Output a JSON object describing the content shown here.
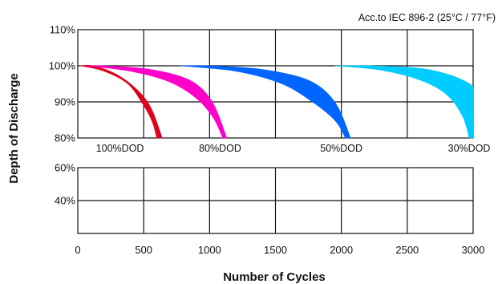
{
  "chart_data": {
    "type": "area",
    "title": "Acc.to IEC 896-2 (25°C / 77°F)",
    "xlabel": "Number of Cycles",
    "ylabel": "Depth of Discharge",
    "xlim": [
      0,
      3000
    ],
    "x_ticks": [
      "0",
      "500",
      "1000",
      "1500",
      "2000",
      "2500",
      "3000"
    ],
    "upper_panel": {
      "ylim": [
        80,
        110
      ],
      "y_ticks": [
        "80%",
        "90%",
        "100%",
        "110%"
      ]
    },
    "lower_panel": {
      "ylim": [
        20,
        60
      ],
      "y_ticks": [
        "40%",
        "60%"
      ]
    },
    "grid": true,
    "series": [
      {
        "name": "100%DOD",
        "color": "#e0001b",
        "lower": [
          [
            20,
            100
          ],
          [
            200,
            98.5
          ],
          [
            380,
            95
          ],
          [
            500,
            89
          ],
          [
            565,
            84.5
          ],
          [
            600,
            80
          ]
        ],
        "upper": [
          [
            20,
            100
          ],
          [
            120,
            100
          ],
          [
            300,
            97.5
          ],
          [
            460,
            93
          ],
          [
            560,
            88
          ],
          [
            640,
            80
          ]
        ]
      },
      {
        "name": "80%DOD",
        "color": "#ff00c8",
        "lower": [
          [
            60,
            100
          ],
          [
            400,
            98.5
          ],
          [
            700,
            95.5
          ],
          [
            900,
            91
          ],
          [
            1030,
            85.5
          ],
          [
            1100,
            80
          ]
        ],
        "upper": [
          [
            60,
            100
          ],
          [
            200,
            100
          ],
          [
            550,
            99
          ],
          [
            850,
            96
          ],
          [
            1020,
            90
          ],
          [
            1130,
            80
          ]
        ]
      },
      {
        "name": "50%DOD",
        "color": "#0066ff",
        "lower": [
          [
            770,
            100
          ],
          [
            1200,
            98.5
          ],
          [
            1550,
            95
          ],
          [
            1800,
            89.5
          ],
          [
            1960,
            84.5
          ],
          [
            2030,
            80
          ]
        ],
        "upper": [
          [
            770,
            100
          ],
          [
            1000,
            100
          ],
          [
            1400,
            99
          ],
          [
            1750,
            96
          ],
          [
            1950,
            90
          ],
          [
            2070,
            80
          ]
        ]
      },
      {
        "name": "30%DOD",
        "color": "#00ccff",
        "lower": [
          [
            1950,
            100
          ],
          [
            2300,
            98.8
          ],
          [
            2600,
            96
          ],
          [
            2800,
            92
          ],
          [
            2920,
            86
          ],
          [
            2970,
            80
          ]
        ],
        "upper": [
          [
            1950,
            100
          ],
          [
            2250,
            100
          ],
          [
            2600,
            99.3
          ],
          [
            2820,
            97.5
          ],
          [
            2950,
            95.5
          ],
          [
            3000,
            94.3
          ],
          [
            3000,
            80
          ]
        ]
      }
    ],
    "annotations": [
      {
        "text": "100%DOD",
        "x": 320,
        "y": 80
      },
      {
        "text": "80%DOD",
        "x": 1080,
        "y": 80
      },
      {
        "text": "50%DOD",
        "x": 2000,
        "y": 80
      },
      {
        "text": "30%DOD",
        "x": 2970,
        "y": 80
      }
    ]
  }
}
